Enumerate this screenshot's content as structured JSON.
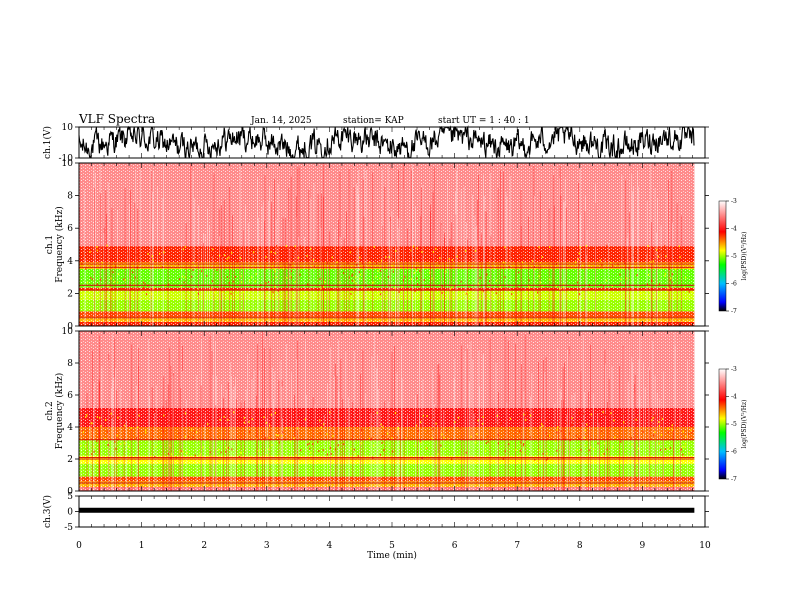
{
  "header": {
    "title": "VLF Spectra",
    "date": "Jan. 14, 2025",
    "station": "station= KAP",
    "start": "start  UT =   1 : 40 : 1"
  },
  "chart_data": [
    {
      "type": "line",
      "name": "ch1-waveform",
      "ylabel": "ch.1(V)",
      "ylim": [
        -10,
        10
      ],
      "yticks": [
        "10",
        "-10"
      ],
      "xlim": [
        0,
        10
      ],
      "x_extent": [
        0,
        9.83
      ]
    },
    {
      "type": "heatmap",
      "name": "ch1-spectrogram",
      "ylabel": "ch.1\nFrequency (kHz)",
      "ylim": [
        0,
        10
      ],
      "yticks": [
        "0",
        "2",
        "4",
        "6",
        "8",
        "10"
      ],
      "xlim": [
        0,
        10
      ],
      "x_extent": [
        0,
        9.83
      ],
      "colorbar": {
        "label": "log(PSD)(V²/Hz)",
        "range": [
          -7,
          -3
        ],
        "ticks": [
          "-3",
          "-4",
          "-5",
          "-6",
          "-7"
        ]
      },
      "bands": [
        {
          "from": 0.0,
          "to": 0.25,
          "level": -4.2
        },
        {
          "from": 0.25,
          "to": 0.55,
          "level": -4.6
        },
        {
          "from": 0.55,
          "to": 0.9,
          "level": -4.3
        },
        {
          "from": 0.9,
          "to": 1.6,
          "level": -5.0
        },
        {
          "from": 1.6,
          "to": 2.2,
          "level": -4.9
        },
        {
          "from": 2.2,
          "to": 2.35,
          "level": -4.2
        },
        {
          "from": 2.35,
          "to": 3.5,
          "level": -5.1
        },
        {
          "from": 3.5,
          "to": 3.9,
          "level": -4.6
        },
        {
          "from": 3.9,
          "to": 4.9,
          "level": -4.2
        },
        {
          "from": 4.9,
          "to": 10.0,
          "level": -3.5
        }
      ],
      "lines_kHz": [
        0.5,
        2.2,
        2.5,
        3.6,
        3.8
      ]
    },
    {
      "type": "heatmap",
      "name": "ch2-spectrogram",
      "ylabel": "ch.2\nFrequency (kHz)",
      "ylim": [
        0,
        10
      ],
      "yticks": [
        "0",
        "2",
        "4",
        "6",
        "8",
        "10"
      ],
      "xlim": [
        0,
        10
      ],
      "x_extent": [
        0,
        9.83
      ],
      "colorbar": {
        "label": "log(PSD)(V²/Hz)",
        "range": [
          -7,
          -3
        ],
        "ticks": [
          "-3",
          "-4",
          "-5",
          "-6",
          "-7"
        ]
      },
      "bands": [
        {
          "from": 0.0,
          "to": 0.25,
          "level": -3.6
        },
        {
          "from": 0.25,
          "to": 0.6,
          "level": -4.6
        },
        {
          "from": 0.6,
          "to": 0.9,
          "level": -4.3
        },
        {
          "from": 0.9,
          "to": 1.7,
          "level": -5.0
        },
        {
          "from": 1.7,
          "to": 2.2,
          "level": -4.8
        },
        {
          "from": 2.2,
          "to": 3.2,
          "level": -5.0
        },
        {
          "from": 3.2,
          "to": 4.0,
          "level": -4.4
        },
        {
          "from": 4.0,
          "to": 5.2,
          "level": -4.0
        },
        {
          "from": 5.2,
          "to": 10.0,
          "level": -3.5
        }
      ],
      "lines_kHz": [
        0.5,
        2.0,
        2.1,
        3.2
      ]
    },
    {
      "type": "line",
      "name": "ch3-waveform",
      "ylabel": "ch.3(V)",
      "ylim": [
        -5,
        5
      ],
      "yticks": [
        "5",
        "0",
        "-5"
      ],
      "xlim": [
        0,
        10
      ],
      "x_extent": [
        0,
        9.83
      ],
      "level_V": 0.4,
      "xlabel": "Time (min)",
      "xticks": [
        "0",
        "1",
        "2",
        "3",
        "4",
        "5",
        "6",
        "7",
        "8",
        "9",
        "10"
      ]
    }
  ]
}
